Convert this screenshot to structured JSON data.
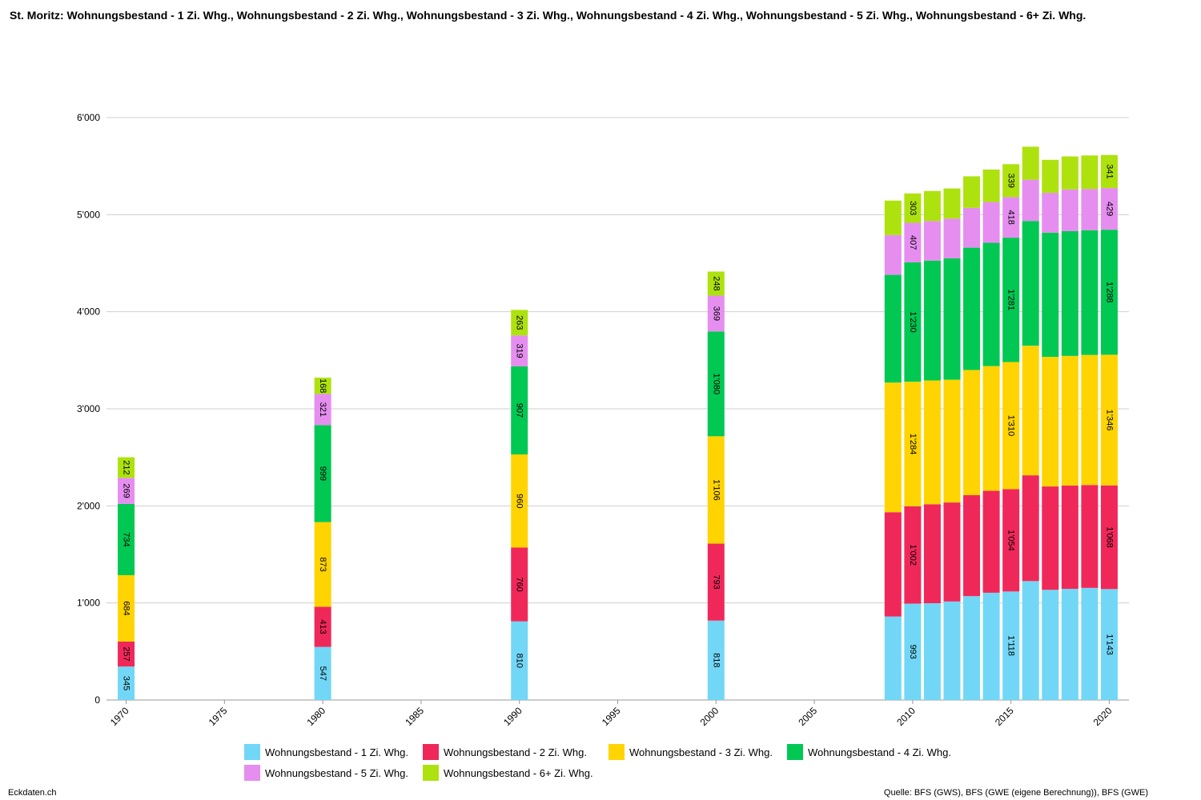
{
  "title": "St. Moritz: Wohnungsbestand - 1 Zi. Whg., Wohnungsbestand - 2 Zi. Whg., Wohnungsbestand - 3 Zi. Whg., Wohnungsbestand - 4 Zi. Whg., Wohnungsbestand - 5 Zi. Whg., Wohnungsbestand - 6+ Zi. Whg.",
  "footer": {
    "site": "Eckdaten.ch",
    "source": "Quelle: BFS (GWS), BFS (GWE (eigene Berechnung)), BFS (GWE)"
  },
  "chart_data": {
    "type": "bar",
    "stacked": true,
    "ylim": [
      0,
      6000
    ],
    "yticks": [
      0,
      1000,
      2000,
      3000,
      4000,
      5000,
      6000
    ],
    "ytick_labels": [
      "0",
      "1'000",
      "2'000",
      "3'000",
      "4'000",
      "5'000",
      "6'000"
    ],
    "xlim": [
      1969,
      2021
    ],
    "xticks": [
      1970,
      1975,
      1980,
      1985,
      1990,
      1995,
      2000,
      2005,
      2010,
      2015,
      2020
    ],
    "grid": true,
    "legend_position": "bottom",
    "categories": [
      1970,
      1980,
      1990,
      2000,
      2009,
      2010,
      2011,
      2012,
      2013,
      2014,
      2015,
      2016,
      2017,
      2018,
      2019,
      2020
    ],
    "series": [
      {
        "name": "Wohnungsbestand - 1 Zi. Whg.",
        "color": "#72d7f6",
        "values": [
          345,
          547,
          810,
          818,
          860,
          993,
          997,
          1015,
          1070,
          1105,
          1118,
          1225,
          1135,
          1145,
          1155,
          1143
        ]
      },
      {
        "name": "Wohnungsbestand - 2 Zi. Whg.",
        "color": "#f0285a",
        "values": [
          257,
          413,
          760,
          793,
          1075,
          1002,
          1020,
          1020,
          1040,
          1050,
          1054,
          1090,
          1065,
          1065,
          1060,
          1068
        ]
      },
      {
        "name": "Wohnungsbestand - 3 Zi. Whg.",
        "color": "#ffd400",
        "values": [
          684,
          873,
          960,
          1106,
          1335,
          1284,
          1275,
          1265,
          1290,
          1285,
          1310,
          1335,
          1335,
          1335,
          1340,
          1346
        ]
      },
      {
        "name": "Wohnungsbestand - 4 Zi. Whg.",
        "color": "#00c853",
        "values": [
          734,
          999,
          907,
          1080,
          1110,
          1230,
          1235,
          1250,
          1260,
          1270,
          1281,
          1285,
          1280,
          1285,
          1285,
          1288
        ]
      },
      {
        "name": "Wohnungsbestand - 5 Zi. Whg.",
        "color": "#e58ef0",
        "values": [
          269,
          321,
          319,
          369,
          410,
          407,
          407,
          410,
          410,
          420,
          418,
          425,
          410,
          430,
          425,
          429
        ]
      },
      {
        "name": "Wohnungsbestand - 6+ Zi. Whg.",
        "color": "#aee20e",
        "values": [
          212,
          168,
          263,
          248,
          355,
          303,
          310,
          310,
          325,
          335,
          339,
          340,
          340,
          340,
          345,
          341
        ]
      }
    ],
    "labeled_categories": [
      1970,
      1980,
      1990,
      2000,
      2010,
      2015,
      2020
    ],
    "data_labels": {
      "1970": [
        "345",
        "257",
        "684",
        "734",
        "269",
        "212"
      ],
      "1980": [
        "547",
        "413",
        "873",
        "999",
        "321",
        "168"
      ],
      "1990": [
        "810",
        "760",
        "960",
        "907",
        "319",
        "263"
      ],
      "2000": [
        "818",
        "793",
        "1'106",
        "1'080",
        "369",
        "248"
      ],
      "2010": [
        "993",
        "1'002",
        "1'284",
        "1'230",
        "407",
        "303"
      ],
      "2015": [
        "1'118",
        "1'054",
        "1'310",
        "1'281",
        "418",
        "339"
      ],
      "2020": [
        "1'143",
        "1'068",
        "1'346",
        "1'288",
        "429",
        "341"
      ]
    }
  }
}
